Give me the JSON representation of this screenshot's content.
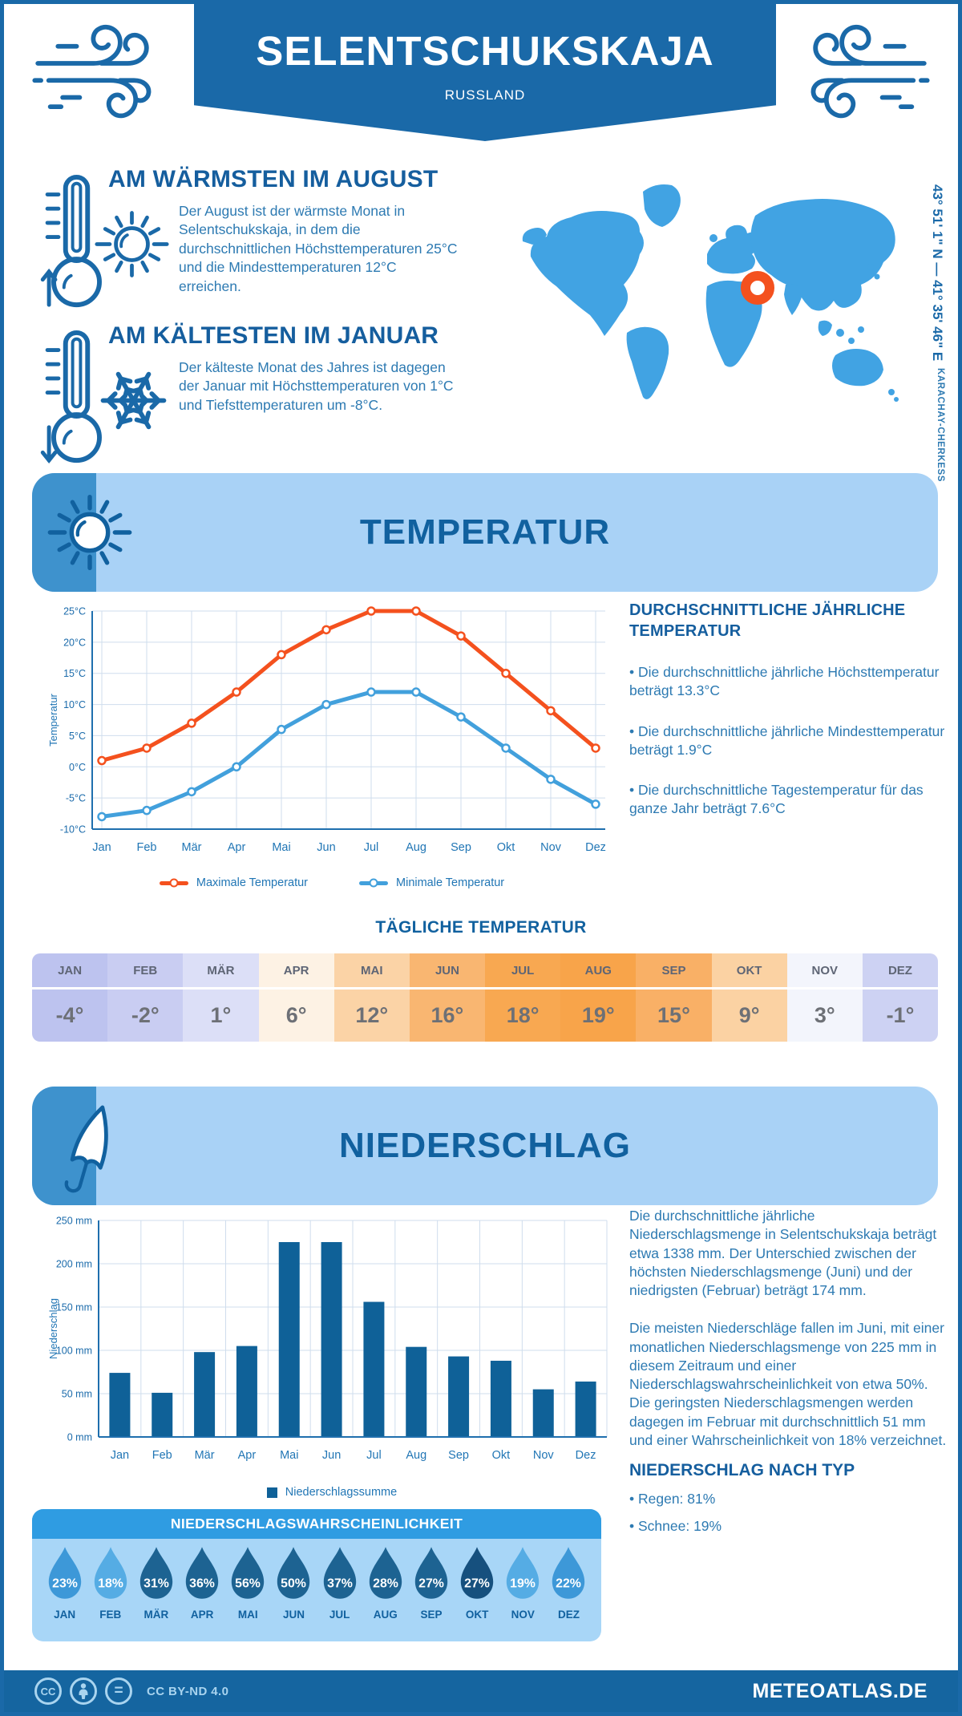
{
  "colors": {
    "primary_blue": "#1a69a8",
    "heading_blue": "#155e9e",
    "body_blue": "#2d7ab2",
    "panel_light_blue": "#a9d2f6",
    "panel_accent_blue": "#3e92cd",
    "map_blue": "#41a3e3",
    "marker_orange": "#f4511e",
    "footer_blue": "#1565a0"
  },
  "header": {
    "title": "SELENTSCHUKSKAJA",
    "country": "RUSSLAND"
  },
  "location": {
    "coordinates": "43° 51' 1\" N — 41° 35' 46\" E",
    "region": "KARACHAY-CHERKESS"
  },
  "highlights": {
    "warm": {
      "title": "AM WÄRMSTEN IM AUGUST",
      "text": "Der August ist der wärmste Monat in Selentschukskaja, in dem die durchschnittlichen Höchsttemperaturen 25°C und die Mindesttemperaturen 12°C erreichen."
    },
    "cold": {
      "title": "AM KÄLTESTEN IM JANUAR",
      "text": "Der kälteste Monat des Jahres ist dagegen der Januar mit Höchsttemperaturen von 1°C und Tiefsttemperaturen um -8°C."
    }
  },
  "temperature": {
    "banner": "TEMPERATUR",
    "summary_title": "DURCHSCHNITTLICHE JÄHRLICHE TEMPERATUR",
    "summary_bullets": [
      "• Die durchschnittliche jährliche Höchsttemperatur beträgt 13.3°C",
      "• Die durchschnittliche jährliche Mindesttemperatur beträgt 1.9°C",
      "• Die durchschnittliche Tagestemperatur für das ganze Jahr beträgt 7.6°C"
    ],
    "daily_title": "TÄGLICHE TEMPERATUR",
    "daily": {
      "months": [
        "JAN",
        "FEB",
        "MÄR",
        "APR",
        "MAI",
        "JUN",
        "JUL",
        "AUG",
        "SEP",
        "OKT",
        "NOV",
        "DEZ"
      ],
      "values": [
        "-4°",
        "-2°",
        "1°",
        "6°",
        "12°",
        "16°",
        "18°",
        "19°",
        "15°",
        "9°",
        "3°",
        "-1°"
      ],
      "colors": [
        "#bdc3ef",
        "#c9cdf2",
        "#dcdff7",
        "#fdf2e4",
        "#fbd3a6",
        "#f9b671",
        "#f8a851",
        "#f8a44a",
        "#f9b066",
        "#fbd2a3",
        "#f3f5fc",
        "#cdd2f3"
      ]
    }
  },
  "precipitation": {
    "banner": "NIEDERSCHLAG",
    "paragraphs": [
      "Die durchschnittliche jährliche Niederschlagsmenge in Selentschukskaja beträgt etwa 1338 mm. Der Unterschied zwischen der höchsten Niederschlagsmenge (Juni) und der niedrigsten (Februar) beträgt 174 mm.",
      "Die meisten Niederschläge fallen im Juni, mit einer monatlichen Niederschlagsmenge von 225 mm in diesem Zeitraum und einer Niederschlagswahrscheinlichkeit von etwa 50%. Die geringsten Niederschlagsmengen werden dagegen im Februar mit durchschnittlich 51 mm und einer Wahrscheinlichkeit von 18% verzeichnet."
    ],
    "type_title": "NIEDERSCHLAG NACH TYP",
    "type_bullets": [
      "• Regen: 81%",
      "• Schnee: 19%"
    ],
    "probability": {
      "title": "NIEDERSCHLAGSWAHRSCHEINLICHKEIT",
      "months": [
        "JAN",
        "FEB",
        "MÄR",
        "APR",
        "MAI",
        "JUN",
        "JUL",
        "AUG",
        "SEP",
        "OKT",
        "NOV",
        "DEZ"
      ],
      "values": [
        "23%",
        "18%",
        "31%",
        "36%",
        "56%",
        "50%",
        "37%",
        "28%",
        "27%",
        "27%",
        "19%",
        "22%"
      ],
      "colors": [
        "#3d98d8",
        "#55ace4",
        "#1d6392",
        "#1d6392",
        "#1d6392",
        "#1d6392",
        "#1d6392",
        "#1d6392",
        "#1d6392",
        "#16507e",
        "#55ace4",
        "#3d98d8"
      ]
    }
  },
  "chart_data": [
    {
      "type": "line",
      "title": "Temperatur",
      "categories": [
        "Jan",
        "Feb",
        "Mär",
        "Apr",
        "Mai",
        "Jun",
        "Jul",
        "Aug",
        "Sep",
        "Okt",
        "Nov",
        "Dez"
      ],
      "series": [
        {
          "name": "Maximale Temperatur",
          "color": "#f4511e",
          "values": [
            1,
            3,
            7,
            12,
            18,
            22,
            25,
            25,
            21,
            15,
            9,
            3
          ]
        },
        {
          "name": "Minimale Temperatur",
          "color": "#42a0dc",
          "values": [
            -8,
            -7,
            -4,
            0,
            6,
            10,
            12,
            12,
            8,
            3,
            -2,
            -6
          ]
        }
      ],
      "xlabel": "",
      "ylabel": "Temperatur",
      "ylim": [
        -10,
        25
      ],
      "ytick_step": 5,
      "ytick_suffix": "°C",
      "grid": true,
      "legend_position": "bottom"
    },
    {
      "type": "bar",
      "title": "Niederschlag",
      "categories": [
        "Jan",
        "Feb",
        "Mär",
        "Apr",
        "Mai",
        "Jun",
        "Jul",
        "Aug",
        "Sep",
        "Okt",
        "Nov",
        "Dez"
      ],
      "values": [
        74,
        51,
        98,
        105,
        225,
        225,
        156,
        104,
        93,
        88,
        55,
        64
      ],
      "series_name": "Niederschlagssumme",
      "bar_color": "#0f6198",
      "xlabel": "",
      "ylabel": "Niederschlag",
      "ylim": [
        0,
        250
      ],
      "ytick_step": 50,
      "ytick_suffix": " mm",
      "grid": true,
      "legend_position": "bottom"
    }
  ],
  "footer": {
    "license": "CC BY-ND 4.0",
    "brand": "METEOATLAS.DE"
  }
}
